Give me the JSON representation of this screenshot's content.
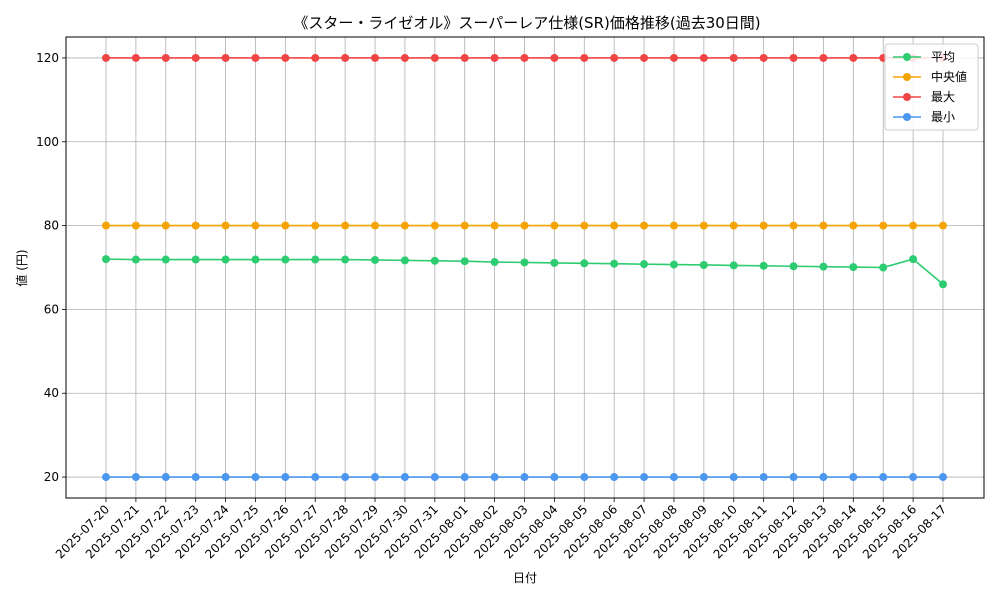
{
  "chart_data": {
    "type": "line",
    "title": "《スター・ライゼオル》スーパーレア仕様(SR)価格推移(過去30日間)",
    "xlabel": "日付",
    "ylabel": "値 (円)",
    "x": [
      "2025-07-20",
      "2025-07-21",
      "2025-07-22",
      "2025-07-23",
      "2025-07-24",
      "2025-07-25",
      "2025-07-26",
      "2025-07-27",
      "2025-07-28",
      "2025-07-29",
      "2025-07-30",
      "2025-07-31",
      "2025-08-01",
      "2025-08-02",
      "2025-08-03",
      "2025-08-04",
      "2025-08-05",
      "2025-08-06",
      "2025-08-07",
      "2025-08-08",
      "2025-08-09",
      "2025-08-10",
      "2025-08-11",
      "2025-08-12",
      "2025-08-13",
      "2025-08-14",
      "2025-08-15",
      "2025-08-16",
      "2025-08-17"
    ],
    "yticks": [
      20,
      40,
      60,
      80,
      100,
      120
    ],
    "ylim": [
      15,
      125
    ],
    "grid": true,
    "legend_position": "top-right",
    "series": [
      {
        "name": "平均",
        "color": "#2ecc71",
        "values": [
          72.0,
          71.9,
          71.9,
          71.9,
          71.9,
          71.9,
          71.9,
          71.9,
          71.9,
          71.8,
          71.7,
          71.6,
          71.5,
          71.3,
          71.2,
          71.1,
          71.0,
          70.9,
          70.8,
          70.7,
          70.6,
          70.5,
          70.4,
          70.3,
          70.2,
          70.1,
          70.0,
          72.0,
          66.0
        ]
      },
      {
        "name": "中央値",
        "color": "#f5a300",
        "values": [
          80,
          80,
          80,
          80,
          80,
          80,
          80,
          80,
          80,
          80,
          80,
          80,
          80,
          80,
          80,
          80,
          80,
          80,
          80,
          80,
          80,
          80,
          80,
          80,
          80,
          80,
          80,
          80,
          80
        ]
      },
      {
        "name": "最大",
        "color": "#f04545",
        "values": [
          120,
          120,
          120,
          120,
          120,
          120,
          120,
          120,
          120,
          120,
          120,
          120,
          120,
          120,
          120,
          120,
          120,
          120,
          120,
          120,
          120,
          120,
          120,
          120,
          120,
          120,
          120,
          120,
          120
        ]
      },
      {
        "name": "最小",
        "color": "#4b96ee",
        "values": [
          20,
          20,
          20,
          20,
          20,
          20,
          20,
          20,
          20,
          20,
          20,
          20,
          20,
          20,
          20,
          20,
          20,
          20,
          20,
          20,
          20,
          20,
          20,
          20,
          20,
          20,
          20,
          20,
          20
        ]
      }
    ]
  }
}
